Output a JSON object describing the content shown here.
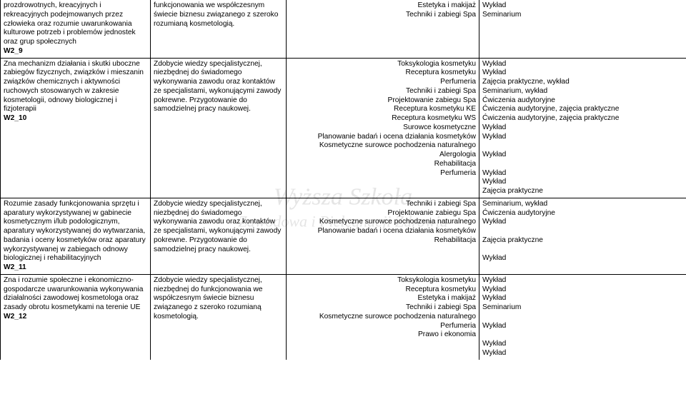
{
  "watermark": {
    "line1": "Wyższa Szkoła",
    "line2": "Zawodowa       i Pielęgnacji Zdrowia"
  },
  "rows": [
    {
      "c1": "prozdrowotnych, kreacyjnych i rekreacyjnych podejmowanych przez człowieka oraz rozumie uwarunkowania kulturowe potrzeb i problemów jednostek oraz grup społecznych",
      "c1code": "W2_9",
      "c2": "funkcjonowania we współczesnym świecie biznesu związanego z szeroko rozumianą kosmetologią.",
      "c3": [
        "Estetyka i makijaż",
        "Techniki i zabiegi Spa"
      ],
      "c4": [
        "Wykład",
        "Seminarium"
      ]
    },
    {
      "c1": "Zna mechanizm działania i skutki uboczne zabiegów fizycznych, związków i mieszanin związków chemicznych i aktywności ruchowych stosowanych w zakresie kosmetologii, odnowy biologicznej i fizjoterapii",
      "c1code": "W2_10",
      "c2": "Zdobycie wiedzy specjalistycznej, niezbędnej do świadomego wykonywania zawodu oraz kontaktów ze specjalistami, wykonującymi zawody pokrewne. Przygotowanie do samodzielnej pracy naukowej.",
      "c3": [
        "Toksykologia kosmetyku",
        "Receptura kosmetyku",
        "Perfumeria",
        "Techniki i zabiegi Spa",
        "Projektowanie zabiegu Spa",
        "Receptura kosmetyku KE",
        "Receptura kosmetyku WS",
        "Surowce kosmetyczne",
        "Planowanie badań i ocena działania kosmetyków",
        "Kosmetyczne surowce pochodzenia naturalnego",
        "Alergologia",
        "Rehabilitacja",
        "Perfumeria"
      ],
      "c4": [
        "Wykład",
        "Wykład",
        "Zajęcia praktyczne, wykład",
        "Seminarium, wykład",
        "Ćwiczenia audytoryjne",
        "Ćwiczenia audytoryjne, zajęcia praktyczne",
        "Ćwiczenia audytoryjne, zajęcia praktyczne",
        "Wykład",
        "Wykład",
        "",
        "Wykład",
        "",
        "Wykład",
        "Wykład",
        "Zajęcia praktyczne"
      ]
    },
    {
      "c1": "Rozumie zasady funkcjonowania sprzętu i aparatury wykorzystywanej w gabinecie kosmetycznym i/lub podologicznym, aparatury wykorzystywanej do wytwarzania, badania i oceny kosmetyków oraz aparatury wykorzystywanej w zabiegach odnowy biologicznej i rehabilitacyjnych",
      "c1code": "W2_11",
      "c2": "Zdobycie wiedzy specjalistycznej, niezbędnej do świadomego wykonywania zawodu oraz kontaktów ze specjalistami, wykonującymi zawody pokrewne. Przygotowanie do samodzielnej pracy naukowej.",
      "c3": [
        "Techniki i zabiegi Spa",
        "Projektowanie zabiegu Spa",
        "Kosmetyczne surowce pochodzenia naturalnego",
        "Planowanie badań i ocena działania kosmetyków",
        "Rehabilitacja"
      ],
      "c4": [
        "Seminarium, wykład",
        "Ćwiczenia audytoryjne",
        "Wykład",
        "",
        "Zajęcia praktyczne",
        "",
        "Wykład"
      ]
    },
    {
      "c1": "Zna i rozumie społeczne i ekonomiczno-gospodarcze uwarunkowania wykonywania działalności zawodowej kosmetologa oraz zasady obrotu kosmetykami na terenie UE",
      "c1code": "W2_12",
      "c2": "Zdobycie wiedzy specjalistycznej, niezbędnej do funkcjonowania we współczesnym świecie biznesu związanego z szeroko rozumianą kosmetologią.",
      "c3": [
        "Toksykologia kosmetyku",
        "Receptura kosmetyku",
        "Estetyka i makijaż",
        "Techniki i zabiegi Spa",
        "Kosmetyczne surowce pochodzenia naturalnego",
        "Perfumeria",
        "Prawo i ekonomia"
      ],
      "c4": [
        "Wykład",
        "Wykład",
        "Wykład",
        "Seminarium",
        "",
        "Wykład",
        "",
        "Wykład",
        "Wykład"
      ]
    }
  ]
}
